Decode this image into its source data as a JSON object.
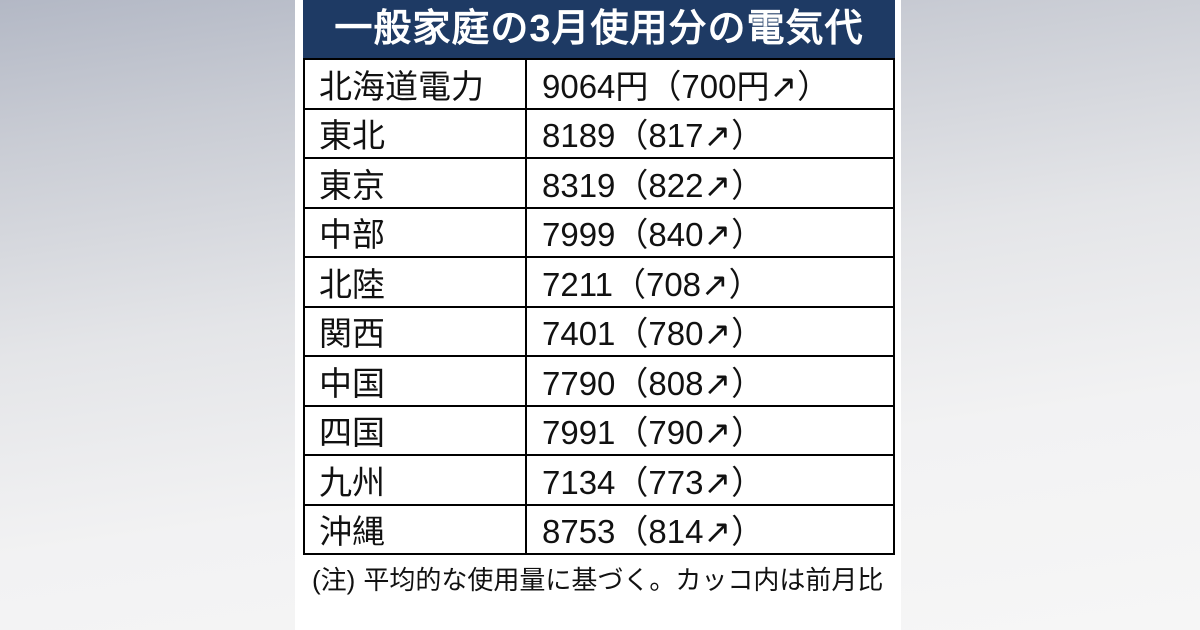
{
  "style": {
    "background_top": "#b3b8c5",
    "background_bottom": "#f6f6f6",
    "panel_bg": "#ffffff",
    "title_bar_bg": "#1e3a64",
    "title_text_color": "#ffffff",
    "border_color": "#000000",
    "body_text_color": "#111111"
  },
  "chart_data": {
    "type": "table",
    "title": "一般家庭の3月使用分の電気代",
    "regions": [
      "北海道電力",
      "東北",
      "東京",
      "中部",
      "北陸",
      "関西",
      "中国",
      "四国",
      "九州",
      "沖縄"
    ],
    "values_yen": [
      9064,
      8189,
      8319,
      7999,
      7211,
      7401,
      7790,
      7991,
      7134,
      8753
    ],
    "mom_change_yen": [
      700,
      817,
      822,
      840,
      708,
      780,
      808,
      790,
      773,
      814
    ],
    "rows": [
      {
        "region": "北海道電力",
        "value": "9064円（700円↗）"
      },
      {
        "region": "東北",
        "value": "8189（817↗）"
      },
      {
        "region": "東京",
        "value": "8319（822↗）"
      },
      {
        "region": "中部",
        "value": "7999（840↗）"
      },
      {
        "region": "北陸",
        "value": "7211（708↗）"
      },
      {
        "region": "関西",
        "value": "7401（780↗）"
      },
      {
        "region": "中国",
        "value": "7790（808↗）"
      },
      {
        "region": "四国",
        "value": "7991（790↗）"
      },
      {
        "region": "九州",
        "value": "7134（773↗）"
      },
      {
        "region": "沖縄",
        "value": "8753（814↗）"
      }
    ],
    "note_label": "(注)",
    "note_text": "平均的な使用量に基づく。カッコ内は前月比"
  }
}
